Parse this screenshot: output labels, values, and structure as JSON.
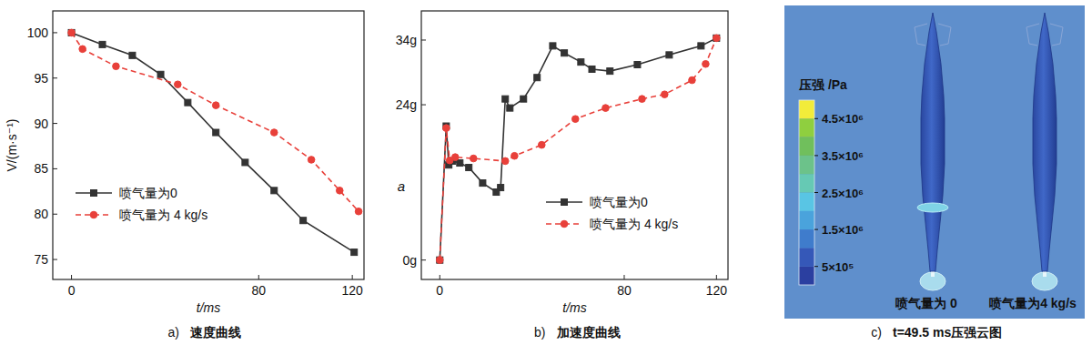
{
  "chart_data": [
    {
      "type": "line",
      "panel_label": "a)",
      "title": "速度曲线",
      "x_label": "t/ms",
      "y_label": "V/(m·s⁻¹)",
      "xlim": [
        -8,
        125
      ],
      "xticks": [
        0,
        80,
        120
      ],
      "ylim": [
        72.8,
        102.4
      ],
      "yticks": [
        75,
        80,
        85,
        90,
        95,
        100
      ],
      "legend": "lower left",
      "series": [
        {
          "name": "喷气量为0",
          "color": "#333333",
          "marker": "square",
          "line_style": "solid",
          "x": [
            0,
            13.2,
            26,
            38.1,
            49.7,
            61.7,
            74.2,
            86.6,
            99,
            120.8
          ],
          "values": [
            100,
            98.7,
            97.5,
            95.4,
            92.3,
            89.0,
            85.7,
            82.6,
            79.3,
            75.8
          ]
        },
        {
          "name": "喷气量为 4 kg/s",
          "color": "#e8403a",
          "marker": "circle",
          "line_style": "dashed",
          "x": [
            0,
            4.7,
            19,
            45.4,
            61.7,
            86.6,
            102.5,
            114.6,
            122.7
          ],
          "values": [
            100,
            98.2,
            96.3,
            94.3,
            92.0,
            89.0,
            86.0,
            82.6,
            80.3
          ]
        }
      ]
    },
    {
      "type": "line",
      "panel_label": "b)",
      "title": "加速度曲线",
      "x_label": "t/ms",
      "y_label": "a",
      "xlim": [
        -8,
        125
      ],
      "xticks": [
        0,
        80,
        120
      ],
      "ylim": [
        -3,
        38.5
      ],
      "yticks": [
        {
          "value": 0,
          "label": "0g"
        },
        {
          "value": 24,
          "label": "24g"
        },
        {
          "value": 34,
          "label": "34g"
        }
      ],
      "legend": "lower right",
      "series": [
        {
          "name": "喷气量为0",
          "color": "#333333",
          "marker": "square",
          "line_style": "solid",
          "x": [
            0,
            2.8,
            3.9,
            5.5,
            8.7,
            12.6,
            18.6,
            24.5,
            26.4,
            28.4,
            30.4,
            36.3,
            42.2,
            49,
            54,
            61.2,
            66,
            73.8,
            85.7,
            99.5,
            113.3,
            120
          ],
          "values": [
            0,
            20.7,
            14.7,
            15.3,
            15.0,
            14.3,
            11.9,
            10.5,
            11.2,
            24.9,
            23.5,
            24.9,
            28.2,
            33.1,
            32.0,
            30.6,
            29.5,
            29.2,
            30.2,
            31.7,
            33.1,
            34.3
          ]
        },
        {
          "name": "喷气量为 4 kg/s",
          "color": "#e8403a",
          "marker": "circle",
          "line_style": "dashed",
          "x": [
            0,
            2.8,
            4.3,
            6.7,
            14.6,
            28.4,
            32.4,
            44.2,
            58.8,
            71.9,
            87.7,
            97.5,
            109.4,
            115.3,
            120
          ],
          "values": [
            0,
            20.4,
            15.4,
            15.9,
            15.7,
            15.3,
            16.1,
            17.8,
            21.8,
            23.5,
            24.9,
            25.6,
            27.8,
            30.3,
            34.3
          ]
        }
      ]
    },
    {
      "type": "contour",
      "panel_label": "c)",
      "title": "t=49.5 ms压强云图",
      "colorbar": {
        "label": "压强 /Pa",
        "range": [
          0,
          5000000
        ],
        "ticks": [
          {
            "value": 4500000,
            "label": "4.5×10⁶"
          },
          {
            "value": 3500000,
            "label": "3.5×10⁶"
          },
          {
            "value": 2500000,
            "label": "2.5×10⁶"
          },
          {
            "value": 1500000,
            "label": "1.5×10⁶"
          },
          {
            "value": 500000,
            "label": "5×10⁵"
          }
        ],
        "colors": [
          "#2b3fa0",
          "#3558b8",
          "#3f7ccc",
          "#4aa3dc",
          "#59c5e4",
          "#66c9b4",
          "#6cc28a",
          "#70bf5c",
          "#8fcf3f",
          "#f2ec3a"
        ]
      },
      "annotations": [
        "喷气量为 0",
        "喷气量为4 kg/s"
      ]
    }
  ]
}
